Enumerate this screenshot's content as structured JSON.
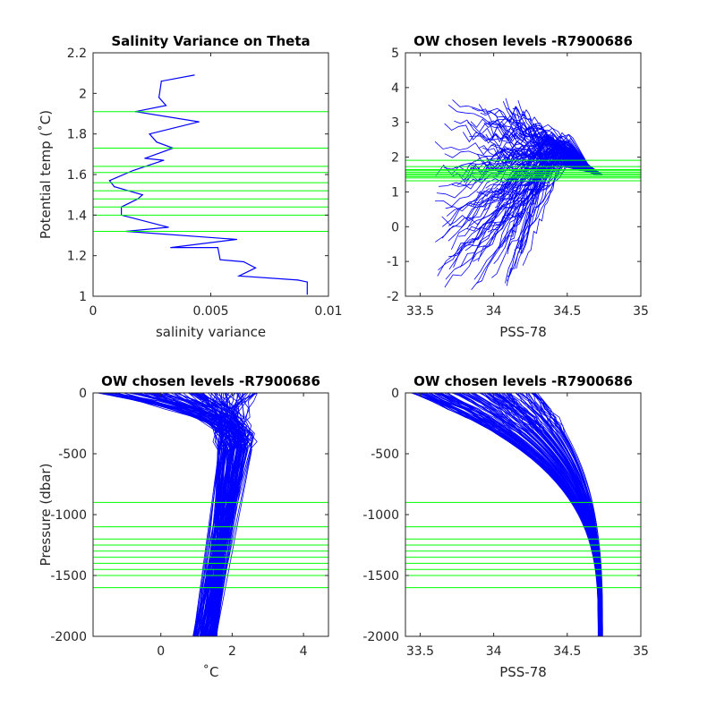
{
  "colors": {
    "data": "#0000ff",
    "levels": "#00ff00",
    "axes": "#262626"
  },
  "chart_data": [
    {
      "type": "line",
      "title": "Salinity Variance on Theta",
      "xlabel": "salinity variance",
      "ylabel": "Potential temp (˚C)",
      "xlim": [
        0,
        0.01
      ],
      "ylim": [
        1,
        2.2
      ],
      "xticks": [
        0,
        0.005,
        0.01
      ],
      "xtick_labels": [
        "0",
        "0.005",
        "0.01"
      ],
      "yticks": [
        1,
        1.2,
        1.4,
        1.6,
        1.8,
        2,
        2.2
      ],
      "ytick_labels": [
        "1",
        "1.2",
        "1.4",
        "1.6",
        "1.8",
        "2",
        "2.2"
      ],
      "grid": false,
      "series": [
        {
          "x": [
            0.0091,
            0.0091,
            0.0087,
            0.0062,
            0.0069,
            0.0064,
            0.0054,
            0.0053,
            0.0033,
            0.0061,
            0.0014,
            0.0032,
            0.0012,
            0.0012,
            0.0019,
            0.0021,
            0.0009,
            0.0007,
            0.0017,
            0.003,
            0.0022,
            0.0034,
            0.0027,
            0.0024,
            0.0045,
            0.0018,
            0.0031,
            0.0028,
            0.0029,
            0.0043
          ],
          "y": [
            1.01,
            1.07,
            1.08,
            1.1,
            1.14,
            1.17,
            1.18,
            1.24,
            1.24,
            1.28,
            1.32,
            1.34,
            1.4,
            1.44,
            1.48,
            1.5,
            1.54,
            1.57,
            1.62,
            1.67,
            1.68,
            1.73,
            1.76,
            1.8,
            1.86,
            1.91,
            1.94,
            1.98,
            2.06,
            2.09
          ]
        }
      ],
      "reference_lines": {
        "orientation": "horizontal",
        "values": [
          1.32,
          1.4,
          1.44,
          1.48,
          1.52,
          1.56,
          1.61,
          1.64,
          1.73,
          1.91
        ]
      }
    },
    {
      "type": "line",
      "title": "OW chosen levels -R7900686",
      "xlabel": "PSS-78",
      "ylabel": "",
      "xlim": [
        33.4,
        35
      ],
      "ylim": [
        -2,
        5
      ],
      "xticks": [
        33.5,
        34,
        34.5,
        35
      ],
      "xtick_labels": [
        "33.5",
        "34",
        "34.5",
        "35"
      ],
      "yticks": [
        -2,
        -1,
        0,
        1,
        2,
        3,
        4,
        5
      ],
      "ytick_labels": [
        "-2",
        "-1",
        "0",
        "1",
        "2",
        "3",
        "4",
        "5"
      ],
      "grid": false,
      "profile_count": 120,
      "reference_lines": {
        "orientation": "horizontal",
        "values": [
          1.32,
          1.4,
          1.44,
          1.48,
          1.52,
          1.56,
          1.61,
          1.64,
          1.73,
          1.91
        ]
      }
    },
    {
      "type": "line",
      "title": "OW chosen levels -R7900686",
      "xlabel": "˚C",
      "ylabel": "Pressure (dbar)",
      "xlim": [
        -1.9,
        4.7
      ],
      "ylim": [
        -2000,
        0
      ],
      "xticks": [
        0,
        2,
        4
      ],
      "xtick_labels": [
        "0",
        "2",
        "4"
      ],
      "yticks": [
        -2000,
        -1500,
        -1000,
        -500,
        0
      ],
      "ytick_labels": [
        "-2000",
        "-1500",
        "-1000",
        "-500",
        "0"
      ],
      "grid": false,
      "profile_count": 120,
      "reference_lines": {
        "orientation": "horizontal",
        "values": [
          -900,
          -1100,
          -1200,
          -1250,
          -1300,
          -1350,
          -1400,
          -1450,
          -1500,
          -1600
        ]
      }
    },
    {
      "type": "line",
      "title": "OW chosen levels -R7900686",
      "xlabel": "PSS-78",
      "ylabel": "",
      "xlim": [
        33.4,
        35
      ],
      "ylim": [
        -2000,
        0
      ],
      "xticks": [
        33.5,
        34,
        34.5,
        35
      ],
      "xtick_labels": [
        "33.5",
        "34",
        "34.5",
        "35"
      ],
      "yticks": [
        -2000,
        -1500,
        -1000,
        -500,
        0
      ],
      "ytick_labels": [
        "-2000",
        "-1500",
        "-1000",
        "-500",
        "0"
      ],
      "grid": false,
      "profile_count": 120,
      "reference_lines": {
        "orientation": "horizontal",
        "values": [
          -900,
          -1100,
          -1200,
          -1250,
          -1300,
          -1350,
          -1400,
          -1450,
          -1500,
          -1600
        ]
      }
    }
  ]
}
